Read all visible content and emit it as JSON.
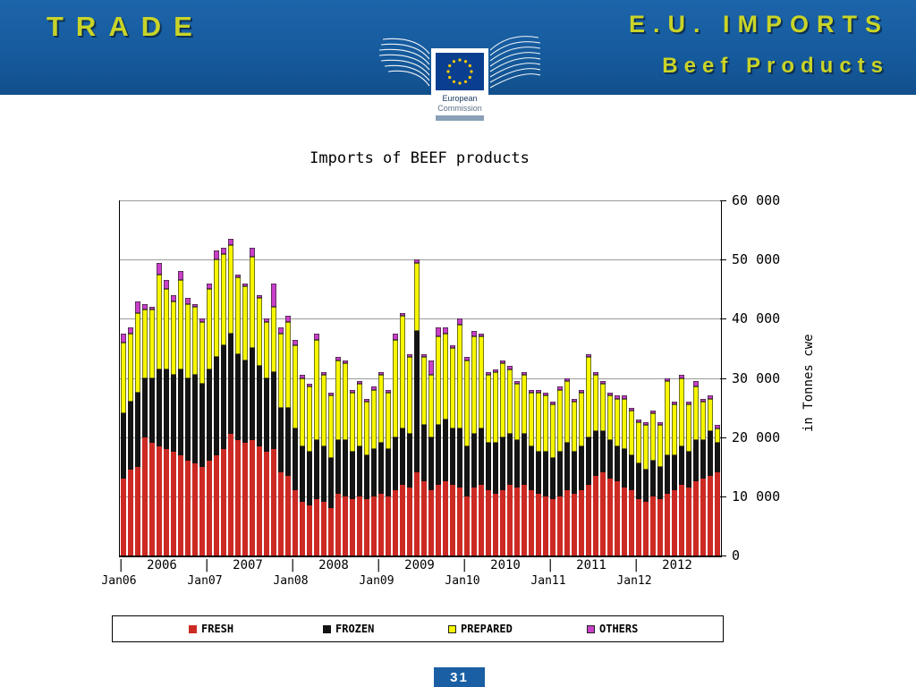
{
  "header": {
    "left_title": "TRADE",
    "right_title_line1": "E.U. IMPORTS",
    "right_title_line2": "Beef Products",
    "banner_color": "#155a9c",
    "accent_text_color": "#c9d428",
    "logo": {
      "line1": "European",
      "line2": "Commission"
    }
  },
  "title": "Imports of BEEF products",
  "chart_data": {
    "type": "bar",
    "stacked": true,
    "title": "Imports of BEEF products",
    "ylabel": "in Tonnes cwe",
    "ylim": [
      0,
      60000
    ],
    "grid": true,
    "legend_position": "bottom",
    "yticks": [
      {
        "value": 60000,
        "label": "60 000"
      },
      {
        "value": 50000,
        "label": "50 000"
      },
      {
        "value": 40000,
        "label": "40 000"
      },
      {
        "value": 30000,
        "label": "30 000"
      },
      {
        "value": 20000,
        "label": "20 000"
      },
      {
        "value": 10000,
        "label": "10 000"
      },
      {
        "value": 0,
        "label": "0"
      }
    ],
    "x_tick_glyph": "|",
    "x_years": [
      "2006",
      "2007",
      "2008",
      "2009",
      "2010",
      "2011",
      "2012"
    ],
    "x_jan_labels": [
      "Jan06",
      "Jan07",
      "Jan08",
      "Jan09",
      "Jan10",
      "Jan11",
      "Jan12"
    ],
    "months_per_year": 12,
    "series": [
      {
        "name": "FRESH",
        "color": "#cd2a24",
        "outlined": false,
        "values": [
          13000,
          14500,
          15000,
          20000,
          19000,
          18500,
          18000,
          17500,
          17000,
          16000,
          15500,
          15000,
          16000,
          17000,
          18000,
          20500,
          19500,
          19000,
          19500,
          18500,
          17500,
          18000,
          14000,
          13500,
          11000,
          9000,
          8500,
          9500,
          9000,
          8000,
          10500,
          10000,
          9500,
          10000,
          9500,
          10000,
          10500,
          10000,
          11000,
          12000,
          11500,
          14000,
          12500,
          11000,
          12000,
          12500,
          12000,
          11500,
          10000,
          11500,
          12000,
          11000,
          10500,
          11000,
          12000,
          11500,
          12000,
          11000,
          10500,
          10000,
          9500,
          10000,
          11000,
          10500,
          11000,
          12000,
          13500,
          14000,
          13000,
          12500,
          11500,
          11000,
          9500,
          9000,
          10000,
          9500,
          10500,
          11000,
          12000,
          11500,
          12500,
          13000,
          13500,
          14000
        ]
      },
      {
        "name": "FROZEN",
        "color": "#141414",
        "outlined": false,
        "values": [
          11000,
          11500,
          12500,
          10000,
          11000,
          13000,
          13500,
          13000,
          14500,
          14000,
          15000,
          14000,
          15500,
          16500,
          17500,
          17000,
          14500,
          14000,
          15500,
          13500,
          12500,
          13000,
          11000,
          11500,
          10500,
          9500,
          9000,
          10000,
          9500,
          8500,
          9000,
          9500,
          8000,
          8500,
          7500,
          8000,
          8500,
          8000,
          9000,
          9500,
          9000,
          24000,
          9500,
          9000,
          10000,
          10500,
          9500,
          10000,
          8500,
          9000,
          9500,
          8000,
          8500,
          9000,
          8500,
          8000,
          8500,
          7500,
          7000,
          7500,
          7000,
          7500,
          8000,
          7000,
          7500,
          8000,
          7500,
          7000,
          6500,
          6000,
          6500,
          6000,
          6000,
          5500,
          6000,
          5500,
          6500,
          6000,
          6500,
          6000,
          7000,
          6500,
          7500,
          5000
        ]
      },
      {
        "name": "PREPARED",
        "color": "#f6f600",
        "outlined": true,
        "values": [
          12000,
          11500,
          13500,
          11500,
          11500,
          16000,
          13500,
          12500,
          15000,
          12500,
          11500,
          10500,
          13500,
          16500,
          15500,
          15000,
          13000,
          12500,
          15500,
          11500,
          9500,
          11000,
          12500,
          14500,
          14000,
          11500,
          11000,
          17000,
          12000,
          10500,
          13500,
          13000,
          10000,
          10500,
          9000,
          10000,
          11500,
          9500,
          16500,
          19000,
          13000,
          11500,
          11500,
          10500,
          15000,
          14500,
          13500,
          17500,
          14500,
          16500,
          15500,
          11500,
          12000,
          12500,
          11000,
          9500,
          10000,
          9000,
          10000,
          9500,
          9000,
          10500,
          10500,
          8500,
          9000,
          13500,
          9500,
          8000,
          7500,
          8000,
          8500,
          7500,
          7000,
          7500,
          8000,
          7000,
          12500,
          8500,
          11500,
          8000,
          9000,
          6500,
          5500,
          2500
        ]
      },
      {
        "name": "OTHERS",
        "color": "#c93fc9",
        "outlined": true,
        "values": [
          1500,
          1000,
          2000,
          1000,
          500,
          2000,
          1500,
          1000,
          1500,
          1000,
          500,
          500,
          1000,
          1500,
          1000,
          1000,
          500,
          500,
          1500,
          500,
          500,
          4000,
          1000,
          1000,
          1000,
          500,
          500,
          1000,
          500,
          500,
          500,
          500,
          500,
          500,
          500,
          500,
          500,
          500,
          1000,
          500,
          500,
          500,
          500,
          2500,
          1500,
          1000,
          500,
          1000,
          500,
          1000,
          500,
          500,
          500,
          500,
          500,
          500,
          500,
          500,
          500,
          500,
          500,
          500,
          500,
          500,
          500,
          500,
          500,
          500,
          500,
          500,
          500,
          500,
          500,
          500,
          500,
          500,
          500,
          500,
          500,
          500,
          1000,
          500,
          500,
          500
        ]
      }
    ]
  },
  "legend": {
    "items": [
      {
        "label": "FRESH",
        "color": "#cd2a24"
      },
      {
        "label": "FROZEN",
        "color": "#141414"
      },
      {
        "label": "PREPARED",
        "color": "#f6f600"
      },
      {
        "label": "OTHERS",
        "color": "#c93fc9"
      }
    ]
  },
  "footer": {
    "page_number": "31"
  }
}
